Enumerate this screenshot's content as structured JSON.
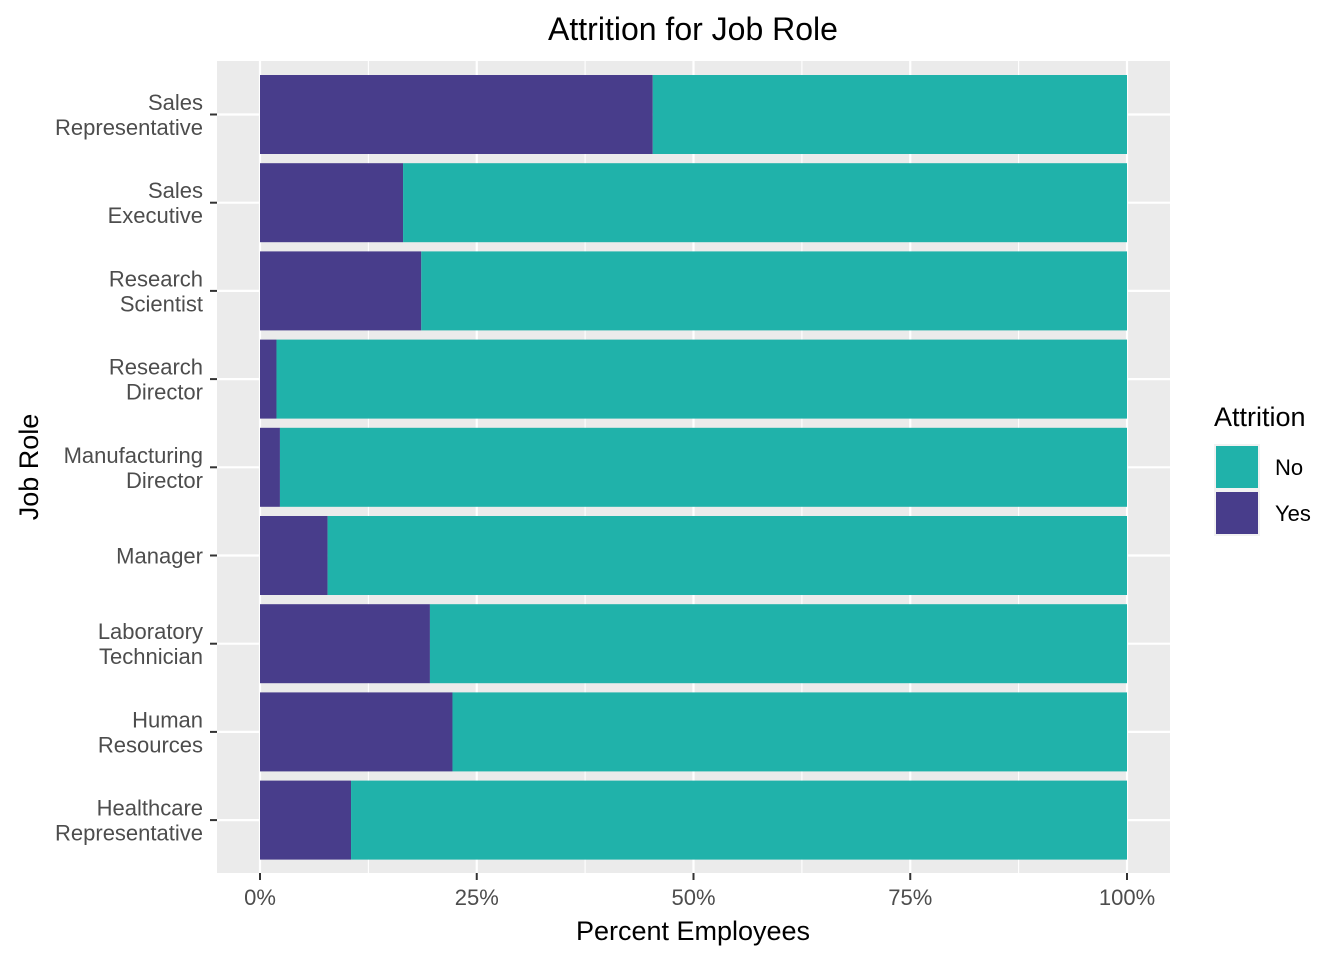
{
  "chart_data": {
    "type": "bar",
    "orientation": "horizontal",
    "stacked": "percent",
    "title": "Attrition for Job Role",
    "xlabel": "Percent Employees",
    "ylabel": "Job Role",
    "xlim": [
      0,
      1
    ],
    "x_ticks": [
      0,
      0.25,
      0.5,
      0.75,
      1
    ],
    "x_tick_labels": [
      "0%",
      "25%",
      "50%",
      "75%",
      "100%"
    ],
    "grid": true,
    "categories": [
      "Sales\nRepresentative",
      "Sales\nExecutive",
      "Research\nScientist",
      "Research\nDirector",
      "Manufacturing\nDirector",
      "Manager",
      "Laboratory\nTechnician",
      "Human\nResources",
      "Healthcare\nRepresentative"
    ],
    "series": [
      {
        "name": "Yes",
        "color": "#483D8B",
        "values": [
          0.453,
          0.165,
          0.186,
          0.019,
          0.023,
          0.078,
          0.196,
          0.222,
          0.105
        ]
      },
      {
        "name": "No",
        "color": "#20B2AA",
        "values": [
          0.547,
          0.835,
          0.814,
          0.981,
          0.977,
          0.922,
          0.804,
          0.778,
          0.895
        ]
      }
    ],
    "legend": {
      "title": "Attrition",
      "position": "right",
      "entries": [
        {
          "label": "No",
          "color": "#20B2AA"
        },
        {
          "label": "Yes",
          "color": "#483D8B"
        }
      ]
    },
    "panel_background": "#EBEBEB",
    "grid_color": "#FFFFFF"
  }
}
